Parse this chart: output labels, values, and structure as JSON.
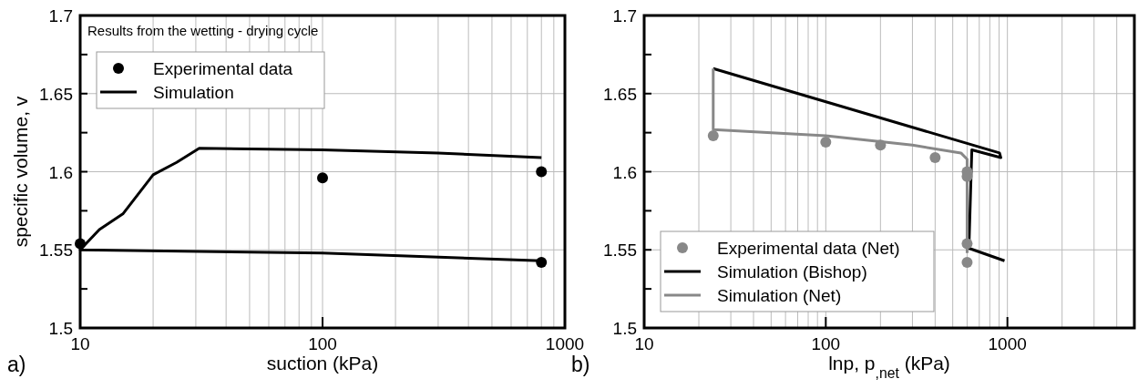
{
  "chart_data": [
    {
      "type": "scatter",
      "ylabel": "specific volume, v",
      "xlabel": "suction (kPa)",
      "annotations": [
        "Results from the wetting - drying cycle",
        "a)"
      ],
      "log": "x",
      "grid": true,
      "legend": "top left",
      "xlim": [
        10,
        1000
      ],
      "ylim": [
        1.5,
        1.7
      ],
      "xticks": [
        10,
        {
          "value": 20,
          "label": null
        },
        {
          "value": 30,
          "label": null
        },
        {
          "value": 40,
          "label": null
        },
        {
          "value": 50,
          "label": null
        },
        {
          "value": 60,
          "label": null
        },
        {
          "value": 70,
          "label": null
        },
        {
          "value": 80,
          "label": null
        },
        {
          "value": 90,
          "label": null
        },
        100,
        {
          "value": 200,
          "label": null
        },
        {
          "value": 300,
          "label": null
        },
        {
          "value": 400,
          "label": null
        },
        {
          "value": 500,
          "label": null
        },
        {
          "value": 600,
          "label": null
        },
        {
          "value": 700,
          "label": null
        },
        {
          "value": 800,
          "label": null
        },
        {
          "value": 900,
          "label": null
        },
        1000
      ],
      "yticks": [
        1.5,
        {
          "value": 1.525,
          "label": null
        },
        1.55,
        {
          "value": 1.575,
          "label": null
        },
        1.6,
        {
          "value": 1.625,
          "label": null
        },
        1.65,
        {
          "value": 1.675,
          "label": null
        },
        1.7
      ],
      "series": [
        {
          "name": "Experimental data",
          "marker": "circle",
          "color": "#000000",
          "x": [
            10,
            100,
            800,
            800
          ],
          "values": [
            1.554,
            1.596,
            1.6,
            1.542
          ]
        },
        {
          "name": "Simulation",
          "type": "line",
          "color": "#000000",
          "x": [
            800,
            100,
            10,
            12,
            15,
            20,
            25,
            31,
            100,
            300,
            800
          ],
          "values": [
            1.543,
            1.548,
            1.55,
            1.563,
            1.573,
            1.598,
            1.606,
            1.615,
            1.614,
            1.612,
            1.609
          ]
        }
      ]
    },
    {
      "type": "scatter",
      "xlabel": "lnp, p$_{,net}$ (kPa)",
      "annotations": [
        "b)"
      ],
      "log": "x",
      "grid": true,
      "legend": "bottom left",
      "xlim": [
        10,
        5000
      ],
      "ylim": [
        1.5,
        1.7
      ],
      "xticks": [
        10,
        {
          "value": 20,
          "label": null
        },
        {
          "value": 30,
          "label": null
        },
        {
          "value": 40,
          "label": null
        },
        {
          "value": 50,
          "label": null
        },
        {
          "value": 60,
          "label": null
        },
        {
          "value": 70,
          "label": null
        },
        {
          "value": 80,
          "label": null
        },
        {
          "value": 90,
          "label": null
        },
        100,
        {
          "value": 200,
          "label": null
        },
        {
          "value": 300,
          "label": null
        },
        {
          "value": 400,
          "label": null
        },
        {
          "value": 500,
          "label": null
        },
        {
          "value": 600,
          "label": null
        },
        {
          "value": 700,
          "label": null
        },
        {
          "value": 800,
          "label": null
        },
        {
          "value": 900,
          "label": null
        },
        1000,
        {
          "value": 2000,
          "label": null
        },
        {
          "value": 3000,
          "label": null
        },
        {
          "value": 4000,
          "label": null
        },
        {
          "value": 5000,
          "label": null
        }
      ],
      "yticks": [
        1.5,
        {
          "value": 1.525,
          "label": null
        },
        1.55,
        {
          "value": 1.575,
          "label": null
        },
        1.6,
        {
          "value": 1.625,
          "label": null
        },
        1.65,
        {
          "value": 1.675,
          "label": null
        },
        1.7
      ],
      "series": [
        {
          "name": "Experimental data (Net)",
          "marker": "circle",
          "color": "#888888",
          "x": [
            24,
            100,
            200,
            400,
            600,
            600,
            600,
            600
          ],
          "values": [
            1.623,
            1.619,
            1.617,
            1.609,
            1.6,
            1.597,
            1.554,
            1.542
          ]
        },
        {
          "name": "Simulation (Bishop)",
          "type": "line",
          "color": "#000000",
          "x": [
            24,
            905,
            920,
            637,
            614,
            964
          ],
          "values": [
            1.666,
            1.612,
            1.609,
            1.614,
            1.551,
            1.543
          ]
        },
        {
          "name": "Simulation (Net)",
          "type": "line",
          "color": "#888888",
          "x": [
            24,
            24,
            100,
            300,
            555,
            600,
            600
          ],
          "values": [
            1.666,
            1.627,
            1.623,
            1.617,
            1.612,
            1.608,
            1.548
          ]
        }
      ]
    }
  ]
}
